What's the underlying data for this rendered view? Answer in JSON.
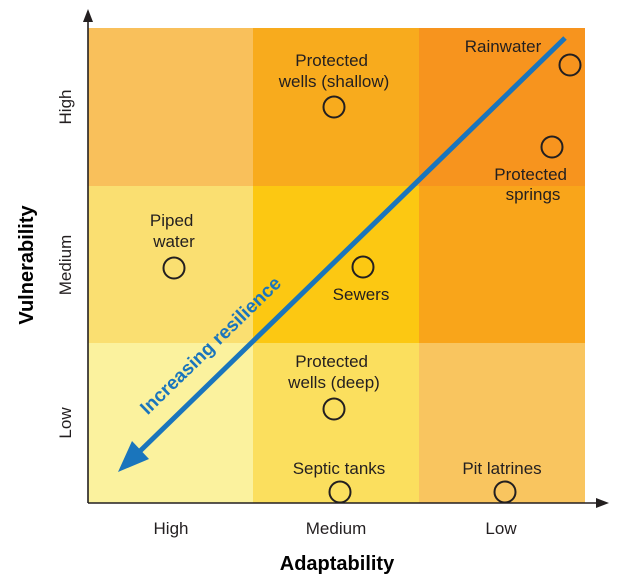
{
  "axes": {
    "x_title": "Adaptability",
    "y_title": "Vulnerability",
    "x_ticks": [
      "High",
      "Medium",
      "Low"
    ],
    "y_ticks": [
      "High",
      "Medium",
      "Low"
    ]
  },
  "grid_colors": [
    [
      "#f9c05b",
      "#f8ab1d",
      "#f7941e"
    ],
    [
      "#fadf71",
      "#fcc812",
      "#f9a51a"
    ],
    [
      "#fbf29e",
      "#fbdf5e",
      "#f9c55f"
    ]
  ],
  "arrow": {
    "label": "Increasing resilience",
    "color": "#1a75bc"
  },
  "labels": {
    "protected_wells_shallow": [
      "Protected",
      "wells (shallow)"
    ],
    "rainwater": [
      "Rainwater"
    ],
    "protected_springs": [
      "Protected",
      "springs"
    ],
    "piped_water": [
      "Piped",
      "water"
    ],
    "sewers": [
      "Sewers"
    ],
    "protected_wells_deep": [
      "Protected",
      "wells (deep)"
    ],
    "septic_tanks": [
      "Septic tanks"
    ],
    "pit_latrines": [
      "Pit latrines"
    ]
  }
}
